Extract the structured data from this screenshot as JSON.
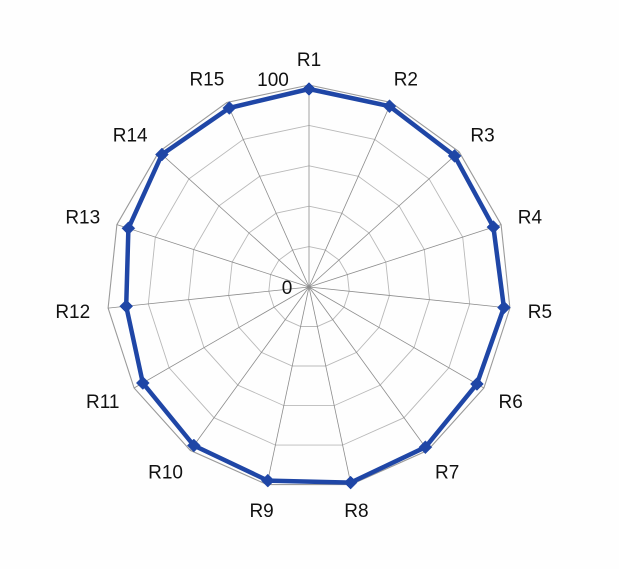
{
  "chart_data": {
    "type": "radar",
    "title": "",
    "categories": [
      "R1",
      "R2",
      "R3",
      "R4",
      "R5",
      "R6",
      "R7",
      "R8",
      "R9",
      "R10",
      "R11",
      "R12",
      "R13",
      "R14",
      "R15"
    ],
    "series": [
      {
        "color": "#1f46a6",
        "marker": "diamond",
        "values": [
          98,
          98,
          97,
          96,
          97,
          96,
          98,
          99,
          98,
          97,
          95,
          91,
          94,
          98,
          97
        ]
      }
    ],
    "radial_range": [
      0,
      100
    ],
    "tick_labels": [
      "0",
      "100"
    ],
    "grid_rings": 5,
    "grid": true,
    "legend": "none"
  }
}
